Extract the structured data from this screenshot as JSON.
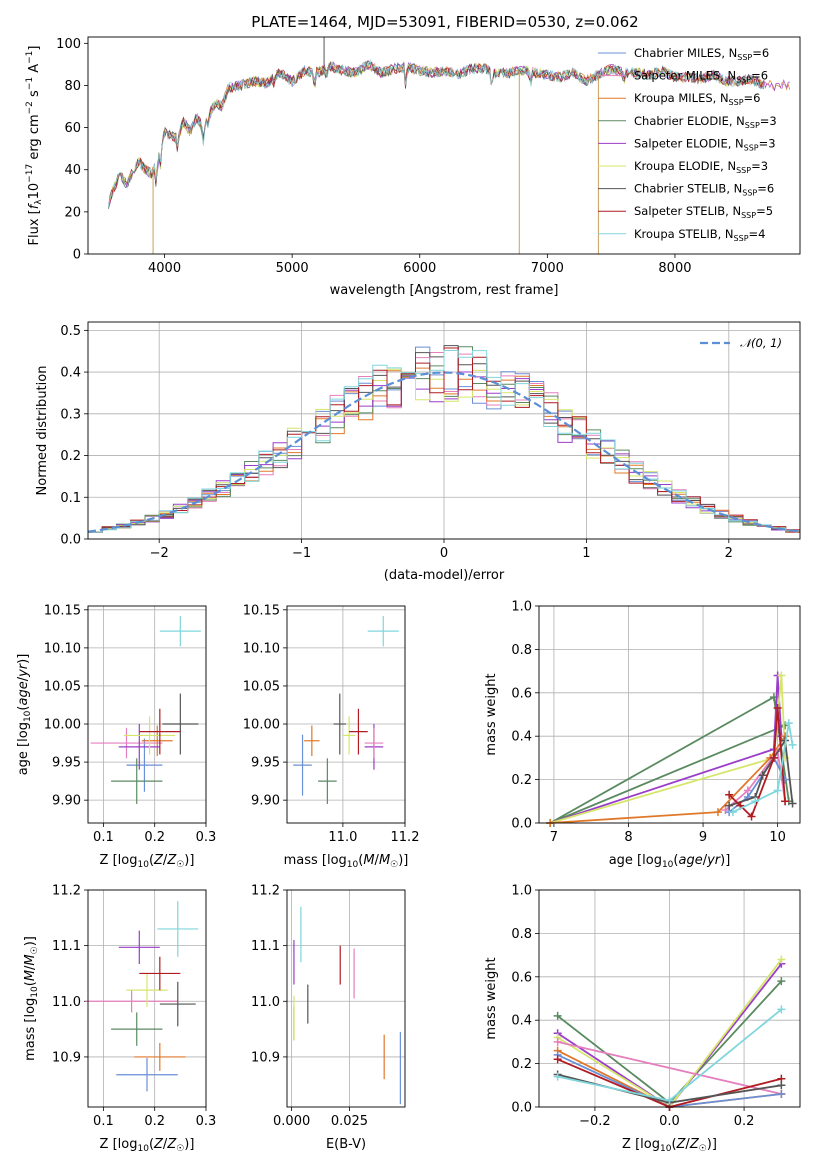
{
  "figure": {
    "title": "PLATE=1464, MJD=53091, FIBERID=0530, z=0.062"
  },
  "colors": {
    "Chabrier MILES": "#6a8fd6",
    "Salpeter MILES": "#e57fbd",
    "Kroupa MILES": "#e0782a",
    "Chabrier ELODIE": "#5a8a60",
    "Salpeter ELODIE": "#9a3dc9",
    "Kroupa ELODIE": "#d6e66a",
    "Chabrier STELIB": "#555555",
    "Salpeter STELIB": "#b01c22",
    "Kroupa STELIB": "#7fd6dc",
    "gauss": "#5b8fd6"
  },
  "chart_data": [
    {
      "id": "spectrum",
      "type": "line",
      "xlabel": "wavelength [Angstrom, rest frame]",
      "ylabel": "Flux [f_λ10^-17 erg cm^-2 s^-1 A^-1]",
      "xlim": [
        3400,
        8980
      ],
      "ylim": [
        0,
        103
      ],
      "xticks": [
        4000,
        5000,
        6000,
        7000,
        8000
      ],
      "yticks": [
        0,
        20,
        40,
        60,
        80,
        100
      ],
      "grid": false,
      "legend_position": "top-right",
      "x": [
        3560,
        3600,
        3650,
        3700,
        3750,
        3800,
        3850,
        3900,
        3950,
        4000,
        4050,
        4100,
        4150,
        4200,
        4250,
        4300,
        4350,
        4400,
        4450,
        4500,
        4600,
        4700,
        4800,
        4900,
        5000,
        5100,
        5200,
        5300,
        5400,
        5500,
        5600,
        5700,
        5800,
        5900,
        6000,
        6100,
        6200,
        6300,
        6400,
        6500,
        6600,
        6700,
        6800,
        6900,
        7000,
        7100,
        7200,
        7300,
        7400,
        7500,
        7600,
        7700,
        7800,
        7900,
        8000,
        8100,
        8200,
        8300,
        8400,
        8500,
        8600,
        8700
      ],
      "y": [
        24,
        31,
        38,
        33,
        39,
        44,
        40,
        38,
        45,
        58,
        56,
        55,
        63,
        58,
        65,
        60,
        66,
        72,
        70,
        79,
        80,
        82,
        81,
        86,
        82,
        87,
        86,
        89,
        87,
        86,
        90,
        86,
        88,
        89,
        87,
        86,
        87,
        85,
        88,
        88,
        86,
        86,
        87,
        86,
        85,
        84,
        86,
        82,
        85,
        88,
        86,
        86,
        85,
        87,
        84,
        84,
        83,
        85,
        82,
        82,
        83,
        80
      ],
      "series": [
        {
          "name": "Chabrier MILES, N_SSP=6",
          "label_main": "Chabrier MILES, N",
          "label_sub": "SSP",
          "label_end": "=6"
        },
        {
          "name": "Salpeter MILES, N_SSP=6",
          "label_main": "Salpeter MILES, N",
          "label_sub": "SSP",
          "label_end": "=6"
        },
        {
          "name": "Kroupa MILES, N_SSP=6",
          "label_main": "Kroupa MILES, N",
          "label_sub": "SSP",
          "label_end": "=6"
        },
        {
          "name": "Chabrier ELODIE, N_SSP=3",
          "label_main": "Chabrier ELODIE, N",
          "label_sub": "SSP",
          "label_end": "=3"
        },
        {
          "name": "Salpeter ELODIE, N_SSP=3",
          "label_main": "Salpeter ELODIE, N",
          "label_sub": "SSP",
          "label_end": "=3"
        },
        {
          "name": "Kroupa ELODIE, N_SSP=3",
          "label_main": "Kroupa ELODIE, N",
          "label_sub": "SSP",
          "label_end": "=3"
        },
        {
          "name": "Chabrier STELIB, N_SSP=6",
          "label_main": "Chabrier STELIB, N",
          "label_sub": "SSP",
          "label_end": "=6"
        },
        {
          "name": "Salpeter STELIB, N_SSP=5",
          "label_main": "Salpeter STELIB, N",
          "label_sub": "SSP",
          "label_end": "=5"
        },
        {
          "name": "Kroupa STELIB, N_SSP=4",
          "label_main": "Kroupa STELIB, N",
          "label_sub": "SSP",
          "label_end": "=4"
        }
      ],
      "spikes": [
        {
          "x": 3910,
          "y": 0
        },
        {
          "x": 5250,
          "y": 103
        },
        {
          "x": 6780,
          "y": 0
        },
        {
          "x": 7400,
          "y": 0
        }
      ]
    },
    {
      "id": "residuals",
      "type": "area",
      "xlabel": "(data-model)/error",
      "ylabel": "Normed distribution",
      "xlim": [
        -2.5,
        2.5
      ],
      "ylim": [
        0,
        0.52
      ],
      "xticks": [
        -2,
        -1,
        0,
        1,
        2
      ],
      "yticks": [
        0.0,
        0.1,
        0.2,
        0.3,
        0.4,
        0.5
      ],
      "grid": true,
      "legend_position": "top-right",
      "gauss_label": "𝒩(0, 1)",
      "bins": [
        -2.5,
        -2.4,
        -2.3,
        -2.2,
        -2.1,
        -2.0,
        -1.9,
        -1.8,
        -1.7,
        -1.6,
        -1.5,
        -1.4,
        -1.3,
        -1.2,
        -1.1,
        -1.0,
        -0.9,
        -0.8,
        -0.7,
        -0.6,
        -0.5,
        -0.4,
        -0.3,
        -0.2,
        -0.1,
        0.0,
        0.1,
        0.2,
        0.3,
        0.4,
        0.5,
        0.6,
        0.7,
        0.8,
        0.9,
        1.0,
        1.1,
        1.2,
        1.3,
        1.4,
        1.5,
        1.6,
        1.7,
        1.8,
        1.9,
        2.0,
        2.1,
        2.2,
        2.3,
        2.4,
        2.5
      ]
    },
    {
      "id": "age-Z",
      "type": "scatter",
      "xlabel": "Z [log10(Z/Z☉)]",
      "ylabel": "age [log10(age/yr)]",
      "xlim": [
        0.07,
        0.3
      ],
      "ylim": [
        9.87,
        10.155
      ],
      "xticks": [
        0.1,
        0.2,
        0.3
      ],
      "yticks": [
        9.9,
        9.95,
        10.0,
        10.05,
        10.1,
        10.15
      ],
      "grid": true,
      "points": [
        {
          "series": "Chabrier MILES",
          "x": 0.18,
          "y": 9.946,
          "xerr": 0.035,
          "yerr": 0.035
        },
        {
          "series": "Salpeter MILES",
          "x": 0.145,
          "y": 9.975,
          "xerr": 0.07,
          "yerr": 0.02
        },
        {
          "series": "Kroupa MILES",
          "x": 0.205,
          "y": 9.978,
          "xerr": 0.03,
          "yerr": 0.02
        },
        {
          "series": "Chabrier ELODIE",
          "x": 0.165,
          "y": 9.925,
          "xerr": 0.05,
          "yerr": 0.03
        },
        {
          "series": "Salpeter ELODIE",
          "x": 0.17,
          "y": 9.97,
          "xerr": 0.04,
          "yerr": 0.03
        },
        {
          "series": "Kroupa ELODIE",
          "x": 0.19,
          "y": 9.985,
          "xerr": 0.05,
          "yerr": 0.025
        },
        {
          "series": "Chabrier STELIB",
          "x": 0.25,
          "y": 10.0,
          "xerr": 0.035,
          "yerr": 0.04
        },
        {
          "series": "Salpeter STELIB",
          "x": 0.21,
          "y": 9.99,
          "xerr": 0.04,
          "yerr": 0.03
        },
        {
          "series": "Kroupa STELIB",
          "x": 0.25,
          "y": 10.122,
          "xerr": 0.04,
          "yerr": 0.02
        }
      ]
    },
    {
      "id": "age-mass",
      "type": "scatter",
      "xlabel": "mass [log10(M/M☉)]",
      "xlim": [
        10.82,
        11.2
      ],
      "ylim": [
        9.87,
        10.155
      ],
      "xticks": [
        11.0,
        11.2
      ],
      "yticks": [
        9.9,
        9.95,
        10.0,
        10.05,
        10.1,
        10.15
      ],
      "grid": true,
      "points": [
        {
          "series": "Chabrier MILES",
          "x": 10.87,
          "y": 9.946,
          "xerr": 0.03,
          "yerr": 0.04
        },
        {
          "series": "Kroupa MILES",
          "x": 10.9,
          "y": 9.978,
          "xerr": 0.025,
          "yerr": 0.02
        },
        {
          "series": "Chabrier ELODIE",
          "x": 10.95,
          "y": 9.925,
          "xerr": 0.03,
          "yerr": 0.03
        },
        {
          "series": "Salpeter ELODIE",
          "x": 11.1,
          "y": 9.97,
          "xerr": 0.03,
          "yerr": 0.03
        },
        {
          "series": "Kroupa ELODIE",
          "x": 11.02,
          "y": 9.985,
          "xerr": 0.02,
          "yerr": 0.025
        },
        {
          "series": "Chabrier STELIB",
          "x": 10.99,
          "y": 10.0,
          "xerr": 0.02,
          "yerr": 0.04
        },
        {
          "series": "Salpeter STELIB",
          "x": 11.05,
          "y": 9.99,
          "xerr": 0.03,
          "yerr": 0.03
        },
        {
          "series": "Kroupa STELIB",
          "x": 11.13,
          "y": 10.122,
          "xerr": 0.05,
          "yerr": 0.02
        },
        {
          "series": "Salpeter MILES",
          "x": 11.1,
          "y": 9.975,
          "xerr": 0.03,
          "yerr": 0.02
        }
      ]
    },
    {
      "id": "mw-age",
      "type": "line",
      "xlabel": "age [log10(age/yr)]",
      "ylabel": "mass weight",
      "xlim": [
        6.8,
        10.3
      ],
      "ylim": [
        0.0,
        1.0
      ],
      "xticks": [
        7,
        8,
        9,
        10
      ],
      "yticks": [
        0.0,
        0.2,
        0.4,
        0.6,
        0.8,
        1.0
      ],
      "grid": true,
      "series": [
        {
          "series": "Chabrier ELODIE",
          "x": [
            10.15,
            9.95,
            6.95,
            10.1
          ],
          "y": [
            0.1,
            0.58,
            0.0,
            0.45
          ]
        },
        {
          "series": "Salpeter ELODIE",
          "x": [
            6.95,
            9.95,
            10.0,
            10.05
          ],
          "y": [
            0.0,
            0.34,
            0.68,
            0.4
          ]
        },
        {
          "series": "Kroupa ELODIE",
          "x": [
            6.95,
            9.95,
            10.05,
            10.1
          ],
          "y": [
            0.0,
            0.3,
            0.68,
            0.3
          ]
        },
        {
          "series": "Kroupa MILES",
          "x": [
            6.95,
            9.2,
            9.9,
            10.1
          ],
          "y": [
            0.0,
            0.05,
            0.3,
            0.4
          ]
        },
        {
          "series": "Salpeter MILES",
          "x": [
            9.3,
            9.6,
            10.0,
            10.1
          ],
          "y": [
            0.06,
            0.15,
            0.33,
            0.1
          ]
        },
        {
          "series": "Chabrier MILES",
          "x": [
            9.35,
            9.6,
            9.95,
            10.1
          ],
          "y": [
            0.05,
            0.12,
            0.3,
            0.2
          ]
        },
        {
          "series": "Chabrier STELIB",
          "x": [
            9.35,
            9.7,
            9.8,
            10.1,
            10.2
          ],
          "y": [
            0.08,
            0.12,
            0.22,
            0.38,
            0.09
          ]
        },
        {
          "series": "Salpeter STELIB",
          "x": [
            9.35,
            9.5,
            9.65,
            9.95,
            10.0,
            10.1
          ],
          "y": [
            0.13,
            0.08,
            0.03,
            0.3,
            0.53,
            0.1
          ]
        },
        {
          "series": "Kroupa STELIB",
          "x": [
            9.4,
            9.7,
            10.0,
            10.15,
            10.2
          ],
          "y": [
            0.05,
            0.1,
            0.15,
            0.46,
            0.36
          ]
        }
      ]
    },
    {
      "id": "mass-Z",
      "type": "scatter",
      "xlabel": "Z [log10(Z/Z☉)]",
      "ylabel": "mass [log10(M/M☉)]",
      "xlim": [
        0.07,
        0.3
      ],
      "ylim": [
        10.81,
        11.2
      ],
      "xticks": [
        0.1,
        0.2,
        0.3
      ],
      "yticks": [
        10.9,
        11.0,
        11.1,
        11.2
      ],
      "grid": true,
      "points": [
        {
          "series": "Chabrier MILES",
          "x": 0.185,
          "y": 10.868,
          "xerr": 0.06,
          "yerr": 0.03
        },
        {
          "series": "Salpeter MILES",
          "x": 0.155,
          "y": 11.0,
          "xerr": 0.09,
          "yerr": 0.02
        },
        {
          "series": "Kroupa MILES",
          "x": 0.21,
          "y": 10.9,
          "xerr": 0.05,
          "yerr": 0.025
        },
        {
          "series": "Chabrier ELODIE",
          "x": 0.165,
          "y": 10.95,
          "xerr": 0.05,
          "yerr": 0.03
        },
        {
          "series": "Salpeter ELODIE",
          "x": 0.17,
          "y": 11.097,
          "xerr": 0.04,
          "yerr": 0.03
        },
        {
          "series": "Kroupa ELODIE",
          "x": 0.185,
          "y": 11.02,
          "xerr": 0.04,
          "yerr": 0.03
        },
        {
          "series": "Chabrier STELIB",
          "x": 0.245,
          "y": 10.995,
          "xerr": 0.035,
          "yerr": 0.04
        },
        {
          "series": "Salpeter STELIB",
          "x": 0.21,
          "y": 11.05,
          "xerr": 0.04,
          "yerr": 0.03
        },
        {
          "series": "Kroupa STELIB",
          "x": 0.245,
          "y": 11.13,
          "xerr": 0.04,
          "yerr": 0.05
        }
      ]
    },
    {
      "id": "mass-EBV",
      "type": "scatter",
      "xlabel": "E(B-V)",
      "xlim": [
        -0.002,
        0.049
      ],
      "ylim": [
        10.81,
        11.2
      ],
      "xticks": [
        0.0,
        0.025
      ],
      "yticks": [
        10.9,
        11.0,
        11.1,
        11.2
      ],
      "grid": true,
      "points": [
        {
          "series": "Chabrier MILES",
          "x": 0.047,
          "y": 10.88,
          "xerr": 0.0,
          "yerr": 0.065
        },
        {
          "series": "Salpeter MILES",
          "x": 0.027,
          "y": 11.05,
          "xerr": 0.0,
          "yerr": 0.045
        },
        {
          "series": "Kroupa MILES",
          "x": 0.04,
          "y": 10.9,
          "xerr": 0.0,
          "yerr": 0.04
        },
        {
          "series": "Chabrier ELODIE",
          "x": 0.001,
          "y": 10.96,
          "xerr": 0.0,
          "yerr": 0.03
        },
        {
          "series": "Salpeter ELODIE",
          "x": 0.001,
          "y": 11.07,
          "xerr": 0.0,
          "yerr": 0.04
        },
        {
          "series": "Kroupa ELODIE",
          "x": 0.001,
          "y": 10.97,
          "xerr": 0.0,
          "yerr": 0.04
        },
        {
          "series": "Chabrier STELIB",
          "x": 0.007,
          "y": 10.995,
          "xerr": 0.0,
          "yerr": 0.035
        },
        {
          "series": "Salpeter STELIB",
          "x": 0.021,
          "y": 11.065,
          "xerr": 0.0,
          "yerr": 0.035
        },
        {
          "series": "Kroupa STELIB",
          "x": 0.004,
          "y": 11.12,
          "xerr": 0.0,
          "yerr": 0.05
        }
      ]
    },
    {
      "id": "mw-Z",
      "type": "line",
      "xlabel": "Z [log10(Z/Z☉)]",
      "ylabel": "mass weight",
      "xlim": [
        -0.35,
        0.35
      ],
      "ylim": [
        0.0,
        1.0
      ],
      "xticks": [
        -0.2,
        0.0,
        0.2
      ],
      "yticks": [
        0.0,
        0.2,
        0.4,
        0.6,
        0.8,
        1.0
      ],
      "grid": true,
      "series": [
        {
          "series": "Chabrier ELODIE",
          "x": [
            -0.3,
            0.0,
            0.3
          ],
          "y": [
            0.42,
            0.02,
            0.58
          ]
        },
        {
          "series": "Salpeter ELODIE",
          "x": [
            -0.3,
            0.0,
            0.3
          ],
          "y": [
            0.34,
            0.0,
            0.66
          ]
        },
        {
          "series": "Kroupa ELODIE",
          "x": [
            -0.3,
            0.0,
            0.3
          ],
          "y": [
            0.32,
            0.0,
            0.68
          ]
        },
        {
          "series": "Salpeter MILES",
          "x": [
            -0.3,
            0.3
          ],
          "y": [
            0.3,
            0.06
          ]
        },
        {
          "series": "Kroupa MILES",
          "x": [
            -0.3,
            0.0,
            0.3
          ],
          "y": [
            0.26,
            0.0,
            0.06
          ]
        },
        {
          "series": "Chabrier MILES",
          "x": [
            -0.3,
            0.0,
            0.3
          ],
          "y": [
            0.24,
            0.0,
            0.06
          ]
        },
        {
          "series": "Salpeter STELIB",
          "x": [
            -0.3,
            0.0,
            0.3
          ],
          "y": [
            0.22,
            0.0,
            0.13
          ]
        },
        {
          "series": "Chabrier STELIB",
          "x": [
            -0.3,
            0.0,
            0.3
          ],
          "y": [
            0.15,
            0.02,
            0.1
          ]
        },
        {
          "series": "Kroupa STELIB",
          "x": [
            -0.3,
            0.0,
            0.3
          ],
          "y": [
            0.14,
            0.03,
            0.45
          ]
        }
      ]
    }
  ]
}
